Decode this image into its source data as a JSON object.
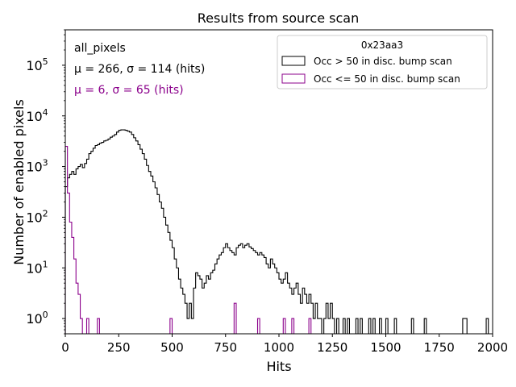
{
  "chart_data": {
    "type": "histogram",
    "title": "Results from source scan",
    "xlabel": "Hits",
    "ylabel": "Number of enabled pixels",
    "xlim": [
      0,
      2000
    ],
    "ylim": [
      0.5,
      500000
    ],
    "yscale": "log",
    "bin_width": 10,
    "x_ticks": [
      0,
      250,
      500,
      750,
      1000,
      1250,
      1500,
      1750,
      2000
    ],
    "x_tick_labels": [
      "0",
      "250",
      "500",
      "750",
      "1000",
      "1250",
      "1500",
      "1750",
      "2000"
    ],
    "y_ticks": [
      1,
      10,
      100,
      1000,
      10000,
      100000
    ],
    "y_tick_exponents": [
      "0",
      "1",
      "2",
      "3",
      "4",
      "5"
    ],
    "y_tick_base": "10",
    "annotations": {
      "label": "all_pixels",
      "stats_black": "μ = 266, σ = 114 (hits)",
      "stats_purple": "μ = 6, σ = 65 (hits)"
    },
    "legend": {
      "title": "0x23aa3",
      "position": "top-right",
      "entries": [
        {
          "label": "Occ > 50 in disc. bump scan",
          "color": "#000000"
        },
        {
          "label": "Occ <= 50 in disc. bump scan",
          "color": "#8b008b"
        }
      ]
    },
    "series": [
      {
        "name": "Occ > 50 in disc. bump scan",
        "color": "#000000",
        "bins": [
          [
            0,
            400
          ],
          [
            10,
            600
          ],
          [
            20,
            700
          ],
          [
            30,
            800
          ],
          [
            40,
            700
          ],
          [
            50,
            900
          ],
          [
            60,
            1000
          ],
          [
            70,
            1100
          ],
          [
            80,
            950
          ],
          [
            90,
            1150
          ],
          [
            100,
            1400
          ],
          [
            110,
            1800
          ],
          [
            120,
            2000
          ],
          [
            130,
            2300
          ],
          [
            140,
            2600
          ],
          [
            150,
            2700
          ],
          [
            160,
            2900
          ],
          [
            170,
            3000
          ],
          [
            180,
            3200
          ],
          [
            190,
            3300
          ],
          [
            200,
            3500
          ],
          [
            210,
            3800
          ],
          [
            220,
            4000
          ],
          [
            230,
            4300
          ],
          [
            240,
            4800
          ],
          [
            250,
            5200
          ],
          [
            260,
            5300
          ],
          [
            270,
            5300
          ],
          [
            280,
            5200
          ],
          [
            290,
            5000
          ],
          [
            300,
            4800
          ],
          [
            310,
            4300
          ],
          [
            320,
            3700
          ],
          [
            330,
            3200
          ],
          [
            340,
            2700
          ],
          [
            350,
            2200
          ],
          [
            360,
            1800
          ],
          [
            370,
            1400
          ],
          [
            380,
            1050
          ],
          [
            390,
            800
          ],
          [
            400,
            650
          ],
          [
            410,
            500
          ],
          [
            420,
            380
          ],
          [
            430,
            280
          ],
          [
            440,
            200
          ],
          [
            450,
            150
          ],
          [
            460,
            100
          ],
          [
            470,
            70
          ],
          [
            480,
            50
          ],
          [
            490,
            35
          ],
          [
            500,
            25
          ],
          [
            510,
            15
          ],
          [
            520,
            10
          ],
          [
            530,
            6
          ],
          [
            540,
            4
          ],
          [
            550,
            3
          ],
          [
            560,
            2
          ],
          [
            570,
            1
          ],
          [
            580,
            2
          ],
          [
            590,
            1
          ],
          [
            600,
            4
          ],
          [
            610,
            8
          ],
          [
            620,
            7
          ],
          [
            630,
            6
          ],
          [
            640,
            4
          ],
          [
            650,
            5
          ],
          [
            660,
            7
          ],
          [
            670,
            6
          ],
          [
            680,
            8
          ],
          [
            690,
            9
          ],
          [
            700,
            12
          ],
          [
            710,
            15
          ],
          [
            720,
            18
          ],
          [
            730,
            20
          ],
          [
            740,
            25
          ],
          [
            750,
            30
          ],
          [
            760,
            25
          ],
          [
            770,
            22
          ],
          [
            780,
            20
          ],
          [
            790,
            18
          ],
          [
            800,
            25
          ],
          [
            810,
            28
          ],
          [
            820,
            30
          ],
          [
            830,
            25
          ],
          [
            840,
            28
          ],
          [
            850,
            30
          ],
          [
            860,
            26
          ],
          [
            870,
            24
          ],
          [
            880,
            22
          ],
          [
            890,
            20
          ],
          [
            900,
            18
          ],
          [
            910,
            20
          ],
          [
            920,
            18
          ],
          [
            930,
            16
          ],
          [
            940,
            12
          ],
          [
            950,
            10
          ],
          [
            960,
            15
          ],
          [
            970,
            12
          ],
          [
            980,
            10
          ],
          [
            990,
            8
          ],
          [
            1000,
            6
          ],
          [
            1010,
            5
          ],
          [
            1020,
            6
          ],
          [
            1030,
            8
          ],
          [
            1040,
            5
          ],
          [
            1050,
            4
          ],
          [
            1060,
            3
          ],
          [
            1070,
            4
          ],
          [
            1080,
            5
          ],
          [
            1090,
            3
          ],
          [
            1100,
            2
          ],
          [
            1110,
            4
          ],
          [
            1120,
            3
          ],
          [
            1130,
            2
          ],
          [
            1140,
            3
          ],
          [
            1150,
            2
          ],
          [
            1160,
            1
          ],
          [
            1170,
            2
          ],
          [
            1180,
            1
          ],
          [
            1190,
            1
          ],
          [
            1200,
            0
          ],
          [
            1210,
            1
          ],
          [
            1220,
            2
          ],
          [
            1230,
            1
          ],
          [
            1240,
            2
          ],
          [
            1250,
            1
          ],
          [
            1260,
            0
          ],
          [
            1270,
            1
          ],
          [
            1280,
            0
          ],
          [
            1290,
            0
          ],
          [
            1300,
            1
          ],
          [
            1310,
            0
          ],
          [
            1320,
            1
          ],
          [
            1330,
            0
          ],
          [
            1340,
            0
          ],
          [
            1350,
            0
          ],
          [
            1360,
            1
          ],
          [
            1370,
            0
          ],
          [
            1380,
            1
          ],
          [
            1390,
            0
          ],
          [
            1400,
            0
          ],
          [
            1410,
            0
          ],
          [
            1420,
            1
          ],
          [
            1430,
            0
          ],
          [
            1440,
            1
          ],
          [
            1450,
            0
          ],
          [
            1460,
            0
          ],
          [
            1470,
            1
          ],
          [
            1480,
            0
          ],
          [
            1490,
            0
          ],
          [
            1500,
            1
          ],
          [
            1510,
            0
          ],
          [
            1520,
            0
          ],
          [
            1530,
            0
          ],
          [
            1540,
            1
          ],
          [
            1550,
            0
          ],
          [
            1560,
            0
          ],
          [
            1570,
            0
          ],
          [
            1580,
            0
          ],
          [
            1590,
            0
          ],
          [
            1600,
            0
          ],
          [
            1610,
            0
          ],
          [
            1620,
            1
          ],
          [
            1630,
            0
          ],
          [
            1640,
            0
          ],
          [
            1650,
            0
          ],
          [
            1660,
            0
          ],
          [
            1670,
            0
          ],
          [
            1680,
            1
          ],
          [
            1690,
            0
          ],
          [
            1700,
            0
          ],
          [
            1710,
            0
          ],
          [
            1720,
            0
          ],
          [
            1730,
            0
          ],
          [
            1740,
            0
          ],
          [
            1750,
            0
          ],
          [
            1760,
            0
          ],
          [
            1770,
            0
          ],
          [
            1780,
            0
          ],
          [
            1790,
            0
          ],
          [
            1800,
            0
          ],
          [
            1810,
            0
          ],
          [
            1820,
            0
          ],
          [
            1830,
            0
          ],
          [
            1840,
            0
          ],
          [
            1850,
            0
          ],
          [
            1860,
            1
          ],
          [
            1870,
            1
          ],
          [
            1880,
            0
          ],
          [
            1890,
            0
          ],
          [
            1900,
            0
          ],
          [
            1910,
            0
          ],
          [
            1920,
            0
          ],
          [
            1930,
            0
          ],
          [
            1940,
            0
          ],
          [
            1950,
            0
          ],
          [
            1960,
            0
          ],
          [
            1970,
            1
          ],
          [
            1980,
            0
          ],
          [
            1990,
            0
          ]
        ]
      },
      {
        "name": "Occ <= 50 in disc. bump scan",
        "color": "#8b008b",
        "bins": [
          [
            0,
            2500
          ],
          [
            10,
            300
          ],
          [
            20,
            80
          ],
          [
            30,
            40
          ],
          [
            40,
            15
          ],
          [
            50,
            5
          ],
          [
            60,
            3
          ],
          [
            70,
            1
          ],
          [
            80,
            0
          ],
          [
            90,
            0
          ],
          [
            100,
            1
          ],
          [
            110,
            0
          ],
          [
            150,
            1
          ],
          [
            160,
            0
          ],
          [
            490,
            1
          ],
          [
            500,
            0
          ],
          [
            790,
            2
          ],
          [
            800,
            0
          ],
          [
            900,
            1
          ],
          [
            910,
            0
          ],
          [
            1020,
            1
          ],
          [
            1030,
            0
          ],
          [
            1060,
            1
          ],
          [
            1070,
            0
          ],
          [
            1140,
            1
          ],
          [
            1150,
            0
          ]
        ]
      }
    ]
  }
}
